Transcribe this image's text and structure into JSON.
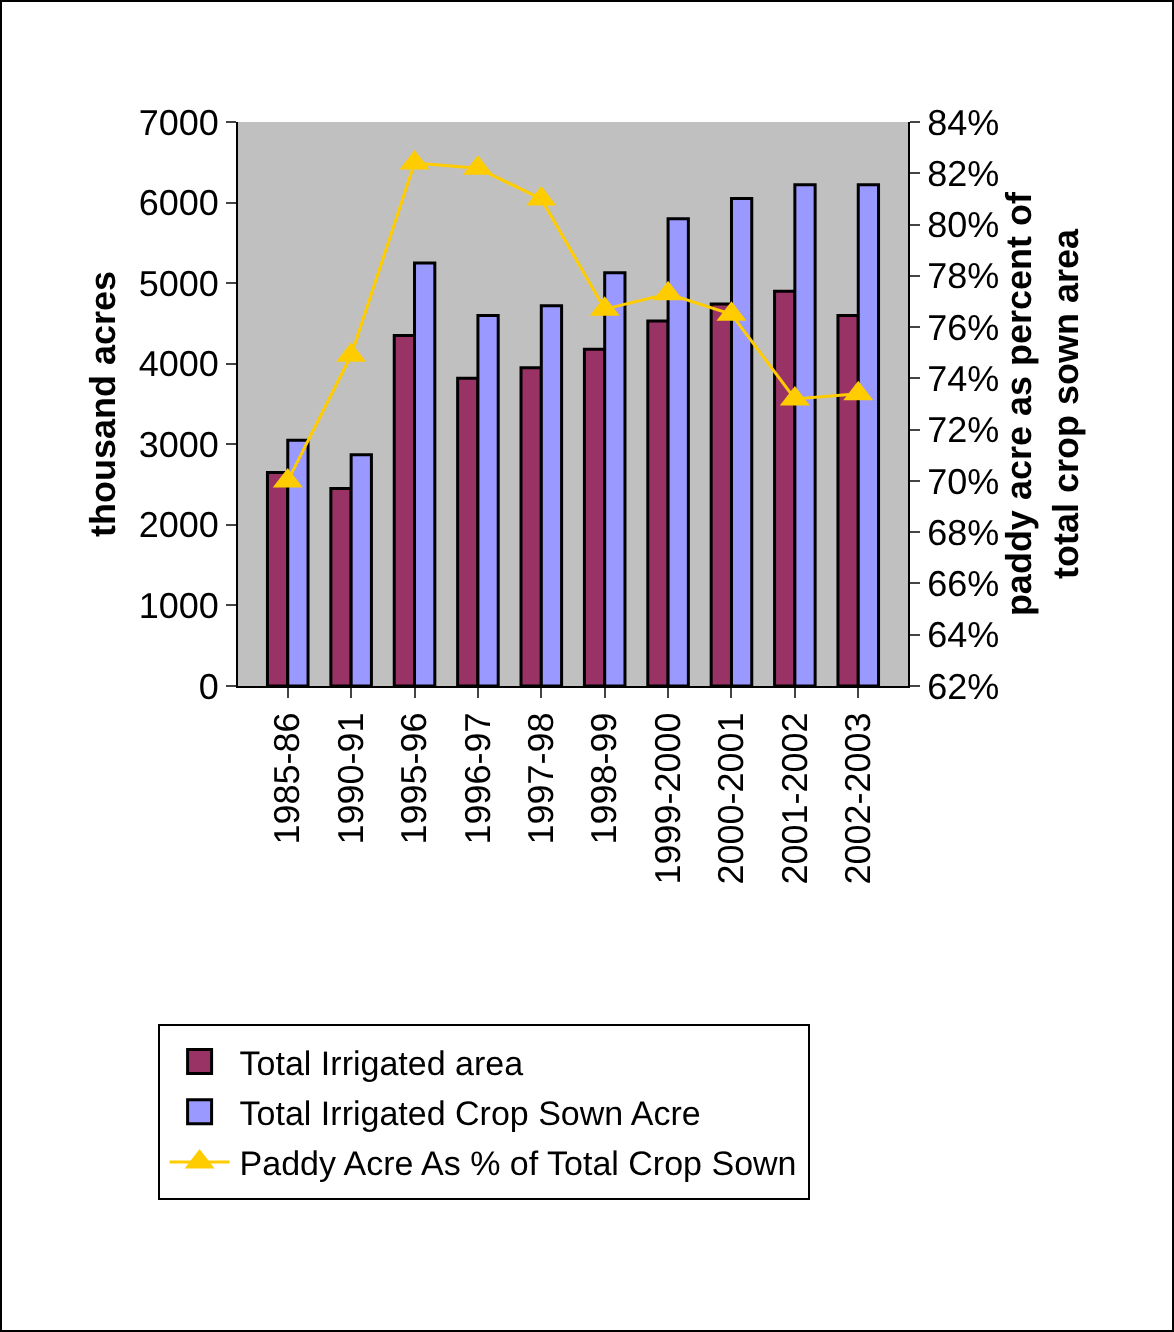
{
  "chart_data": {
    "type": "bar",
    "ylabel": "thousand acres",
    "y2label": "paddy acre as percent of total crop sown area",
    "categories": [
      "1985-86",
      "1990-91",
      "1995-96",
      "1996-97",
      "1997-98",
      "1998-99",
      "1999-2000",
      "2000-2001",
      "2001-2002",
      "2002-2003"
    ],
    "series": [
      {
        "name": "Total Irrigated area",
        "color": "#993366",
        "values": [
          2650,
          2450,
          4350,
          3820,
          3950,
          4180,
          4530,
          4740,
          4900,
          4600
        ]
      },
      {
        "name": "Total Irrigated Crop Sown Acre",
        "color": "#9999ff",
        "values": [
          3050,
          2870,
          5250,
          4600,
          4720,
          5130,
          5800,
          6050,
          6220,
          6220
        ]
      },
      {
        "name": "Paddy Acre As % of Total Crop Sown",
        "type": "line",
        "axis": "y2",
        "color": "#ffcc00",
        "marker": "triangle",
        "values": [
          70.0,
          74.9,
          82.4,
          82.2,
          81.0,
          76.7,
          77.3,
          76.5,
          73.2,
          73.4
        ]
      }
    ],
    "ylim": [
      0,
      7000
    ],
    "yticks": [
      0,
      1000,
      2000,
      3000,
      4000,
      5000,
      6000,
      7000
    ],
    "y2lim": [
      62,
      84
    ],
    "y2ticks": [
      {
        "value": 62,
        "label": "62%"
      },
      {
        "value": 64,
        "label": "64%"
      },
      {
        "value": 66,
        "label": "66%"
      },
      {
        "value": 68,
        "label": "68%"
      },
      {
        "value": 70,
        "label": "70%"
      },
      {
        "value": 72,
        "label": "72%"
      },
      {
        "value": 74,
        "label": "74%"
      },
      {
        "value": 76,
        "label": "76%"
      },
      {
        "value": 78,
        "label": "78%"
      },
      {
        "value": 80,
        "label": "80%"
      },
      {
        "value": 82,
        "label": "82%"
      },
      {
        "value": 84,
        "label": "84%"
      }
    ],
    "grid": false,
    "legend": "bottom"
  }
}
